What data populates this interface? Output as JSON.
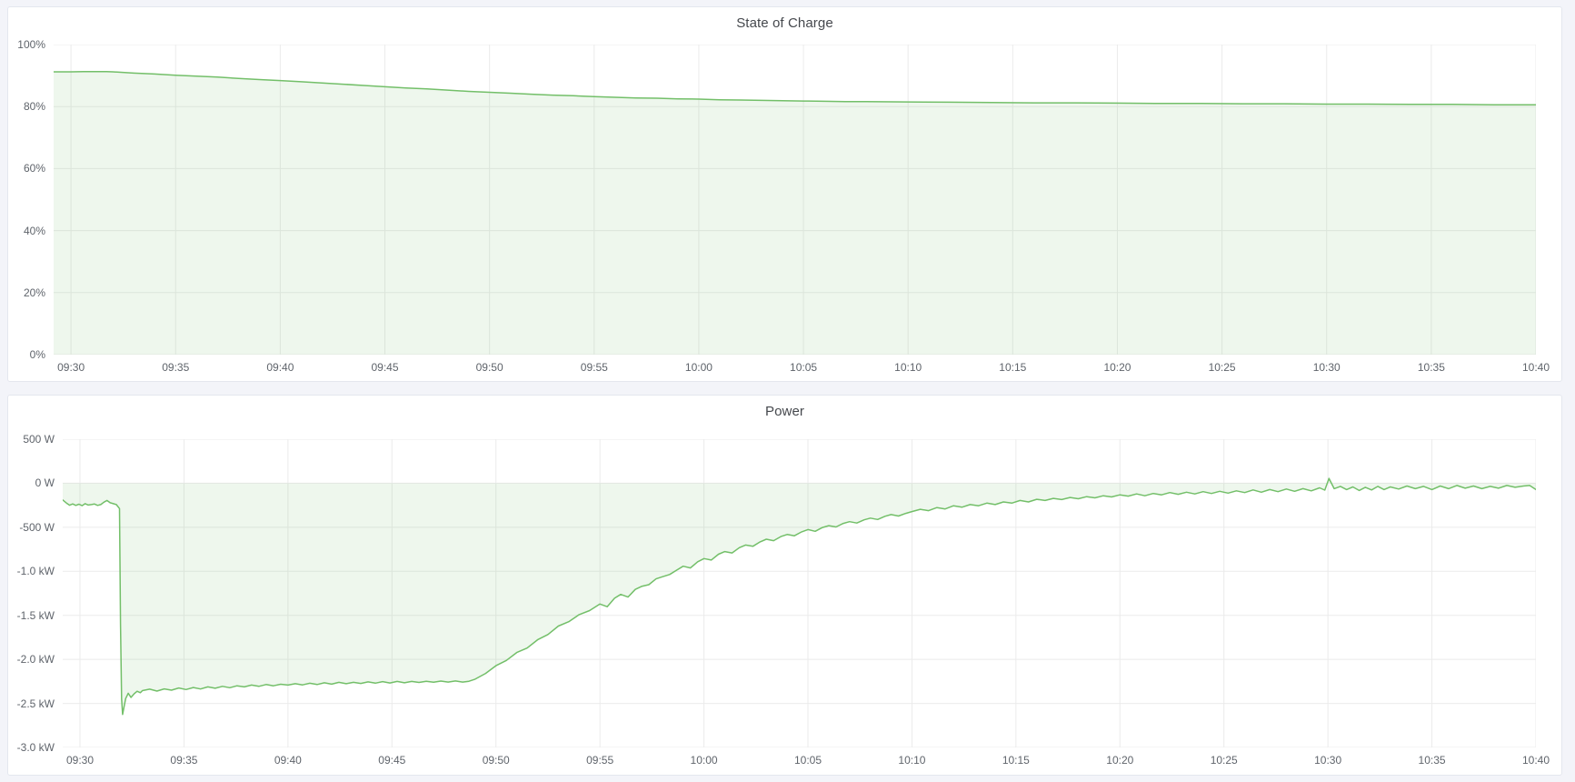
{
  "page": {
    "background_color": "#f3f4f9",
    "panel_background": "#ffffff"
  },
  "panels": [
    {
      "title": "State of Charge"
    },
    {
      "title": "Power"
    }
  ],
  "chart_data": [
    {
      "type": "area",
      "title": "State of Charge",
      "ylabel": "",
      "xlabel": "",
      "unit": "percent",
      "legend": "none",
      "grid": true,
      "line_color": "#73bf69",
      "fill_color": "rgba(115,191,105,0.12)",
      "grid_color": "#ebebeb",
      "x_domain_minutes": [
        -0.83,
        70
      ],
      "y_domain": [
        0,
        100
      ],
      "baseline": 0,
      "x_ticks": [
        {
          "label": "09:30",
          "t": 0
        },
        {
          "label": "09:35",
          "t": 5
        },
        {
          "label": "09:40",
          "t": 10
        },
        {
          "label": "09:45",
          "t": 15
        },
        {
          "label": "09:50",
          "t": 20
        },
        {
          "label": "09:55",
          "t": 25
        },
        {
          "label": "10:00",
          "t": 30
        },
        {
          "label": "10:05",
          "t": 35
        },
        {
          "label": "10:10",
          "t": 40
        },
        {
          "label": "10:15",
          "t": 45
        },
        {
          "label": "10:20",
          "t": 50
        },
        {
          "label": "10:25",
          "t": 55
        },
        {
          "label": "10:30",
          "t": 60
        },
        {
          "label": "10:35",
          "t": 65
        },
        {
          "label": "10:40",
          "t": 70
        }
      ],
      "y_ticks": [
        {
          "label": "100%",
          "v": 100
        },
        {
          "label": "80%",
          "v": 80
        },
        {
          "label": "60%",
          "v": 60
        },
        {
          "label": "40%",
          "v": 40
        },
        {
          "label": "20%",
          "v": 20
        },
        {
          "label": "0%",
          "v": 0
        }
      ],
      "points": [
        [
          -0.83,
          91.2
        ],
        [
          0,
          91.2
        ],
        [
          0.6,
          91.25
        ],
        [
          1.2,
          91.3
        ],
        [
          1.7,
          91.3
        ],
        [
          2,
          91.2
        ],
        [
          3,
          90.8
        ],
        [
          4,
          90.5
        ],
        [
          5,
          90.1
        ],
        [
          6,
          89.8
        ],
        [
          7,
          89.5
        ],
        [
          8,
          89.1
        ],
        [
          9,
          88.7
        ],
        [
          10,
          88.4
        ],
        [
          11,
          88.0
        ],
        [
          12,
          87.6
        ],
        [
          13,
          87.2
        ],
        [
          14,
          86.8
        ],
        [
          15,
          86.4
        ],
        [
          16,
          86.0
        ],
        [
          17,
          85.7
        ],
        [
          18,
          85.3
        ],
        [
          19,
          84.9
        ],
        [
          20,
          84.6
        ],
        [
          21,
          84.3
        ],
        [
          22,
          84.0
        ],
        [
          23,
          83.7
        ],
        [
          24,
          83.5
        ],
        [
          25,
          83.2
        ],
        [
          26,
          83.0
        ],
        [
          27,
          82.8
        ],
        [
          28,
          82.7
        ],
        [
          29,
          82.5
        ],
        [
          30,
          82.4
        ],
        [
          31,
          82.2
        ],
        [
          32,
          82.1
        ],
        [
          33,
          82.0
        ],
        [
          34,
          81.9
        ],
        [
          35,
          81.8
        ],
        [
          36,
          81.7
        ],
        [
          37,
          81.6
        ],
        [
          38,
          81.6
        ],
        [
          40,
          81.5
        ],
        [
          42,
          81.4
        ],
        [
          44,
          81.3
        ],
        [
          46,
          81.2
        ],
        [
          48,
          81.2
        ],
        [
          50,
          81.1
        ],
        [
          52,
          81.0
        ],
        [
          54,
          81.0
        ],
        [
          56,
          80.9
        ],
        [
          58,
          80.9
        ],
        [
          60,
          80.8
        ],
        [
          62,
          80.8
        ],
        [
          64,
          80.7
        ],
        [
          66,
          80.7
        ],
        [
          68,
          80.6
        ],
        [
          70,
          80.6
        ]
      ]
    },
    {
      "type": "area",
      "title": "Power",
      "ylabel": "",
      "xlabel": "",
      "unit": "watt",
      "legend": "none",
      "grid": true,
      "line_color": "#73bf69",
      "fill_color": "rgba(115,191,105,0.12)",
      "grid_color": "#ebebeb",
      "x_domain_minutes": [
        -0.83,
        70
      ],
      "y_domain": [
        -3000,
        500
      ],
      "baseline": 0,
      "x_ticks": [
        {
          "label": "09:30",
          "t": 0
        },
        {
          "label": "09:35",
          "t": 5
        },
        {
          "label": "09:40",
          "t": 10
        },
        {
          "label": "09:45",
          "t": 15
        },
        {
          "label": "09:50",
          "t": 20
        },
        {
          "label": "09:55",
          "t": 25
        },
        {
          "label": "10:00",
          "t": 30
        },
        {
          "label": "10:05",
          "t": 35
        },
        {
          "label": "10:10",
          "t": 40
        },
        {
          "label": "10:15",
          "t": 45
        },
        {
          "label": "10:20",
          "t": 50
        },
        {
          "label": "10:25",
          "t": 55
        },
        {
          "label": "10:30",
          "t": 60
        },
        {
          "label": "10:35",
          "t": 65
        },
        {
          "label": "10:40",
          "t": 70
        }
      ],
      "y_ticks": [
        {
          "label": "500 W",
          "v": 500
        },
        {
          "label": "0 W",
          "v": 0
        },
        {
          "label": "-500 W",
          "v": -500
        },
        {
          "label": "-1.0 kW",
          "v": -1000
        },
        {
          "label": "-1.5 kW",
          "v": -1500
        },
        {
          "label": "-2.0 kW",
          "v": -2000
        },
        {
          "label": "-2.5 kW",
          "v": -2500
        },
        {
          "label": "-3.0 kW",
          "v": -3000
        }
      ],
      "points": [
        [
          -0.83,
          -190
        ],
        [
          -0.65,
          -225
        ],
        [
          -0.5,
          -250
        ],
        [
          -0.35,
          -235
        ],
        [
          -0.2,
          -252
        ],
        [
          -0.05,
          -238
        ],
        [
          0.1,
          -255
        ],
        [
          0.25,
          -232
        ],
        [
          0.4,
          -248
        ],
        [
          0.55,
          -242
        ],
        [
          0.7,
          -236
        ],
        [
          0.85,
          -252
        ],
        [
          1.0,
          -242
        ],
        [
          1.15,
          -215
        ],
        [
          1.3,
          -196
        ],
        [
          1.45,
          -222
        ],
        [
          1.6,
          -232
        ],
        [
          1.75,
          -242
        ],
        [
          1.9,
          -288
        ],
        [
          1.95,
          -1600
        ],
        [
          2.0,
          -2450
        ],
        [
          2.05,
          -2625
        ],
        [
          2.12,
          -2540
        ],
        [
          2.2,
          -2445
        ],
        [
          2.32,
          -2385
        ],
        [
          2.45,
          -2432
        ],
        [
          2.6,
          -2392
        ],
        [
          2.75,
          -2362
        ],
        [
          2.9,
          -2378
        ],
        [
          3.0,
          -2355
        ],
        [
          3.35,
          -2338
        ],
        [
          3.7,
          -2360
        ],
        [
          4.05,
          -2335
        ],
        [
          4.4,
          -2350
        ],
        [
          4.75,
          -2325
        ],
        [
          5.1,
          -2342
        ],
        [
          5.45,
          -2320
        ],
        [
          5.8,
          -2336
        ],
        [
          6.15,
          -2312
        ],
        [
          6.5,
          -2328
        ],
        [
          6.85,
          -2306
        ],
        [
          7.2,
          -2322
        ],
        [
          7.55,
          -2300
        ],
        [
          7.9,
          -2312
        ],
        [
          8.25,
          -2292
        ],
        [
          8.6,
          -2306
        ],
        [
          8.95,
          -2286
        ],
        [
          9.3,
          -2300
        ],
        [
          9.65,
          -2282
        ],
        [
          10.0,
          -2292
        ],
        [
          10.35,
          -2276
        ],
        [
          10.7,
          -2290
        ],
        [
          11.05,
          -2271
        ],
        [
          11.4,
          -2286
        ],
        [
          11.75,
          -2266
        ],
        [
          12.1,
          -2281
        ],
        [
          12.45,
          -2261
        ],
        [
          12.8,
          -2276
        ],
        [
          13.15,
          -2261
        ],
        [
          13.5,
          -2273
        ],
        [
          13.85,
          -2256
        ],
        [
          14.2,
          -2270
        ],
        [
          14.55,
          -2253
        ],
        [
          14.9,
          -2268
        ],
        [
          15.25,
          -2250
        ],
        [
          15.6,
          -2266
        ],
        [
          15.95,
          -2250
        ],
        [
          16.3,
          -2262
        ],
        [
          16.65,
          -2248
        ],
        [
          17.0,
          -2260
        ],
        [
          17.35,
          -2246
        ],
        [
          17.7,
          -2258
        ],
        [
          18.05,
          -2245
        ],
        [
          18.4,
          -2258
        ],
        [
          18.7,
          -2248
        ],
        [
          19.0,
          -2225
        ],
        [
          19.5,
          -2160
        ],
        [
          20.0,
          -2072
        ],
        [
          20.5,
          -2012
        ],
        [
          21.0,
          -1922
        ],
        [
          21.5,
          -1872
        ],
        [
          22.0,
          -1778
        ],
        [
          22.5,
          -1718
        ],
        [
          23.0,
          -1622
        ],
        [
          23.5,
          -1572
        ],
        [
          24.0,
          -1492
        ],
        [
          24.5,
          -1446
        ],
        [
          25.0,
          -1372
        ],
        [
          25.35,
          -1402
        ],
        [
          25.7,
          -1306
        ],
        [
          26.0,
          -1262
        ],
        [
          26.35,
          -1292
        ],
        [
          26.7,
          -1206
        ],
        [
          27.0,
          -1172
        ],
        [
          27.35,
          -1152
        ],
        [
          27.7,
          -1086
        ],
        [
          28.0,
          -1062
        ],
        [
          28.35,
          -1036
        ],
        [
          28.7,
          -986
        ],
        [
          29.0,
          -942
        ],
        [
          29.35,
          -962
        ],
        [
          29.7,
          -892
        ],
        [
          30.0,
          -856
        ],
        [
          30.35,
          -872
        ],
        [
          30.7,
          -806
        ],
        [
          31.0,
          -776
        ],
        [
          31.35,
          -792
        ],
        [
          31.7,
          -732
        ],
        [
          32.0,
          -702
        ],
        [
          32.35,
          -716
        ],
        [
          32.7,
          -666
        ],
        [
          33.0,
          -636
        ],
        [
          33.35,
          -652
        ],
        [
          33.7,
          -606
        ],
        [
          34.0,
          -582
        ],
        [
          34.35,
          -596
        ],
        [
          34.7,
          -552
        ],
        [
          35.0,
          -526
        ],
        [
          35.35,
          -546
        ],
        [
          35.7,
          -502
        ],
        [
          36.0,
          -482
        ],
        [
          36.35,
          -496
        ],
        [
          36.7,
          -456
        ],
        [
          37.0,
          -436
        ],
        [
          37.35,
          -452
        ],
        [
          37.7,
          -416
        ],
        [
          38.0,
          -396
        ],
        [
          38.35,
          -412
        ],
        [
          38.7,
          -376
        ],
        [
          39.0,
          -356
        ],
        [
          39.35,
          -372
        ],
        [
          39.7,
          -342
        ],
        [
          40.0,
          -322
        ],
        [
          40.4,
          -296
        ],
        [
          40.8,
          -312
        ],
        [
          41.2,
          -276
        ],
        [
          41.6,
          -292
        ],
        [
          42.0,
          -256
        ],
        [
          42.4,
          -272
        ],
        [
          42.8,
          -242
        ],
        [
          43.2,
          -256
        ],
        [
          43.6,
          -226
        ],
        [
          44.0,
          -242
        ],
        [
          44.4,
          -212
        ],
        [
          44.8,
          -226
        ],
        [
          45.2,
          -196
        ],
        [
          45.6,
          -212
        ],
        [
          46.0,
          -182
        ],
        [
          46.4,
          -196
        ],
        [
          46.8,
          -172
        ],
        [
          47.2,
          -186
        ],
        [
          47.6,
          -162
        ],
        [
          48.0,
          -176
        ],
        [
          48.4,
          -152
        ],
        [
          48.8,
          -166
        ],
        [
          49.2,
          -142
        ],
        [
          49.6,
          -156
        ],
        [
          50.0,
          -132
        ],
        [
          50.4,
          -146
        ],
        [
          50.8,
          -122
        ],
        [
          51.2,
          -142
        ],
        [
          51.6,
          -116
        ],
        [
          52.0,
          -132
        ],
        [
          52.4,
          -106
        ],
        [
          52.8,
          -126
        ],
        [
          53.2,
          -102
        ],
        [
          53.6,
          -122
        ],
        [
          54.0,
          -96
        ],
        [
          54.4,
          -116
        ],
        [
          54.8,
          -92
        ],
        [
          55.2,
          -112
        ],
        [
          55.6,
          -86
        ],
        [
          56.0,
          -106
        ],
        [
          56.4,
          -76
        ],
        [
          56.8,
          -102
        ],
        [
          57.2,
          -72
        ],
        [
          57.6,
          -96
        ],
        [
          58.0,
          -66
        ],
        [
          58.4,
          -92
        ],
        [
          58.8,
          -62
        ],
        [
          59.2,
          -86
        ],
        [
          59.6,
          -52
        ],
        [
          59.85,
          -78
        ],
        [
          60.05,
          55
        ],
        [
          60.3,
          -62
        ],
        [
          60.6,
          -36
        ],
        [
          60.9,
          -72
        ],
        [
          61.2,
          -42
        ],
        [
          61.5,
          -82
        ],
        [
          61.8,
          -46
        ],
        [
          62.1,
          -76
        ],
        [
          62.4,
          -36
        ],
        [
          62.7,
          -72
        ],
        [
          63.0,
          -42
        ],
        [
          63.4,
          -66
        ],
        [
          63.8,
          -32
        ],
        [
          64.2,
          -62
        ],
        [
          64.6,
          -36
        ],
        [
          65.0,
          -72
        ],
        [
          65.4,
          -32
        ],
        [
          65.8,
          -62
        ],
        [
          66.2,
          -26
        ],
        [
          66.6,
          -56
        ],
        [
          67.0,
          -32
        ],
        [
          67.4,
          -62
        ],
        [
          67.8,
          -36
        ],
        [
          68.2,
          -56
        ],
        [
          68.6,
          -26
        ],
        [
          69.0,
          -46
        ],
        [
          69.4,
          -32
        ],
        [
          69.7,
          -26
        ],
        [
          70.0,
          -72
        ]
      ]
    }
  ]
}
